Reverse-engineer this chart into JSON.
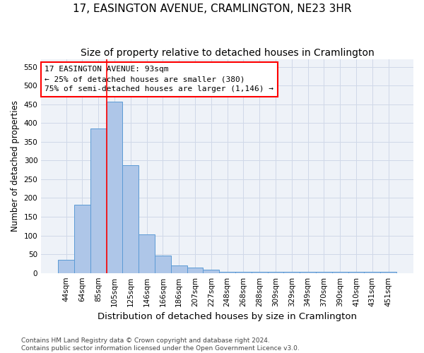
{
  "title": "17, EASINGTON AVENUE, CRAMLINGTON, NE23 3HR",
  "subtitle": "Size of property relative to detached houses in Cramlington",
  "xlabel": "Distribution of detached houses by size in Cramlington",
  "ylabel": "Number of detached properties",
  "bar_labels": [
    "44sqm",
    "64sqm",
    "85sqm",
    "105sqm",
    "125sqm",
    "146sqm",
    "166sqm",
    "186sqm",
    "207sqm",
    "227sqm",
    "248sqm",
    "268sqm",
    "288sqm",
    "309sqm",
    "329sqm",
    "349sqm",
    "370sqm",
    "390sqm",
    "410sqm",
    "431sqm",
    "451sqm"
  ],
  "bar_values": [
    35,
    183,
    385,
    458,
    287,
    103,
    47,
    20,
    15,
    9,
    3,
    3,
    3,
    3,
    3,
    3,
    3,
    3,
    3,
    3,
    3
  ],
  "bar_color": "#aec6e8",
  "bar_edge_color": "#5b9bd5",
  "grid_color": "#d0d8e8",
  "background_color": "#eef2f8",
  "annotation_line1": "17 EASINGTON AVENUE: 93sqm",
  "annotation_line2": "← 25% of detached houses are smaller (380)",
  "annotation_line3": "75% of semi-detached houses are larger (1,146) →",
  "red_line_x": 2.5,
  "ylim": [
    0,
    570
  ],
  "yticks": [
    0,
    50,
    100,
    150,
    200,
    250,
    300,
    350,
    400,
    450,
    500,
    550
  ],
  "footnote": "Contains HM Land Registry data © Crown copyright and database right 2024.\nContains public sector information licensed under the Open Government Licence v3.0.",
  "title_fontsize": 11,
  "subtitle_fontsize": 10,
  "xlabel_fontsize": 9.5,
  "ylabel_fontsize": 8.5,
  "tick_fontsize": 7.5,
  "annotation_fontsize": 8,
  "footnote_fontsize": 6.5
}
